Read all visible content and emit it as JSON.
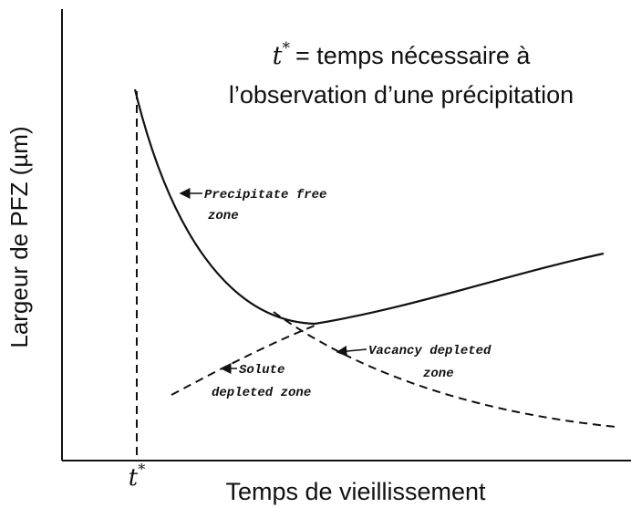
{
  "title": {
    "symbol": "t",
    "superscript": "*",
    "line1": "= temps nécessaire à",
    "line2": "l’observation d’une précipitation"
  },
  "x_axis": {
    "label": "Temps de vieillissement",
    "marker_symbol": "t",
    "marker_superscript": "*"
  },
  "y_axis": {
    "label": "Largeur de PFZ (µm)"
  },
  "annotations": [
    {
      "lines": [
        "Precipitate free",
        "zone"
      ]
    },
    {
      "lines": [
        "Vacancy depleted",
        "zone"
      ]
    },
    {
      "lines": [
        "Solute",
        "depleted zone"
      ]
    }
  ]
}
